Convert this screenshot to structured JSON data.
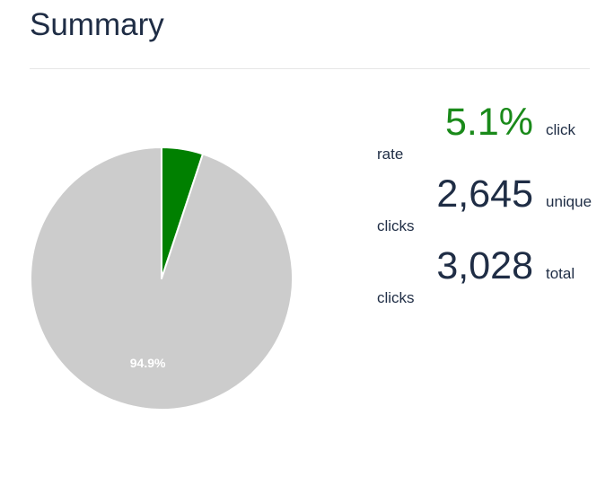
{
  "header": {
    "title": "Summary"
  },
  "stats": [
    {
      "value": "5.1%",
      "label_line1": "click",
      "label_line2": "rate",
      "accent": true
    },
    {
      "value": "2,645",
      "label_line1": "unique",
      "label_line2": "clicks",
      "accent": false
    },
    {
      "value": "3,028",
      "label_line1": "total",
      "label_line2": "clicks",
      "accent": false
    }
  ],
  "colors": {
    "accent": "#1a8a1a",
    "clicked_slice": "#008000",
    "remaining_slice": "#cccccc",
    "text": "#1f2d45"
  },
  "chart_data": {
    "type": "pie",
    "slices": [
      {
        "value": 5.1,
        "color": "#008000",
        "label": ""
      },
      {
        "value": 94.9,
        "color": "#cccccc",
        "label": "94.9%"
      }
    ],
    "start_angle_deg": 0,
    "direction": "clockwise"
  }
}
